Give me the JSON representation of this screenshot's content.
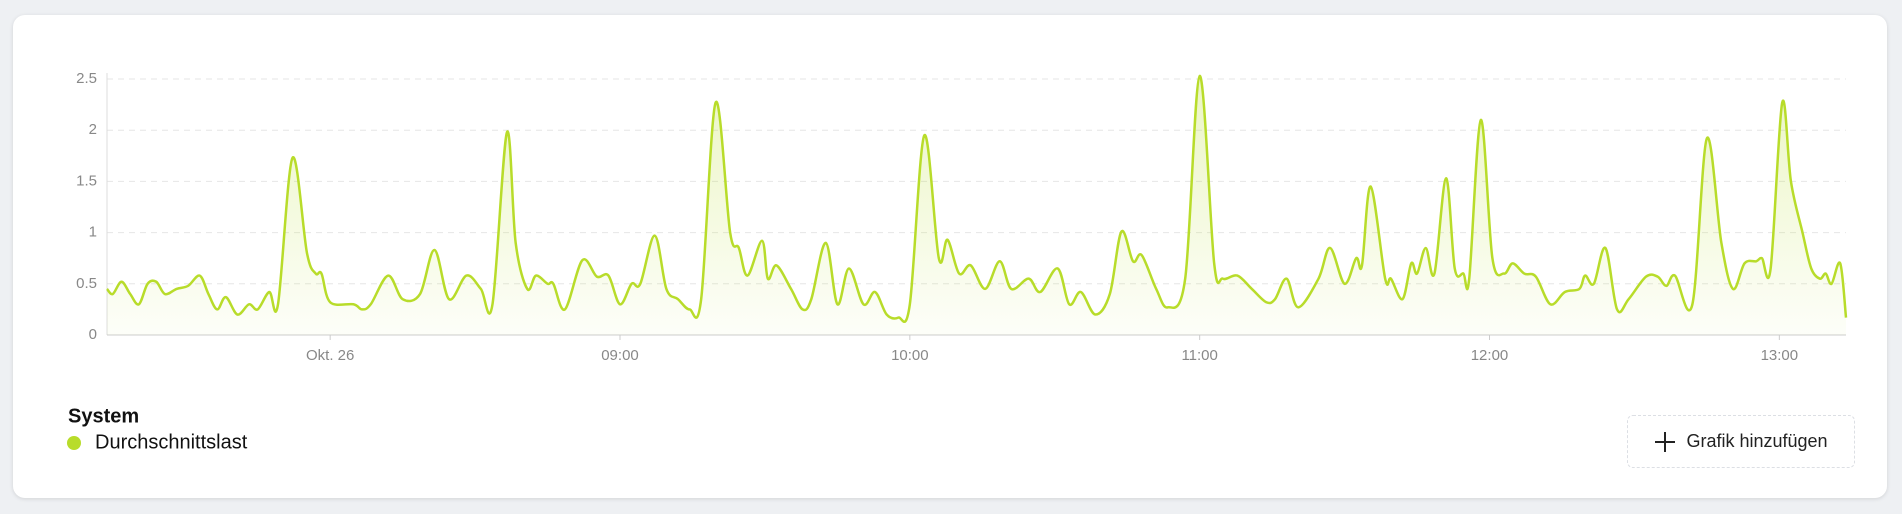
{
  "chart_data": {
    "type": "line",
    "legend_title": "System",
    "series": [
      {
        "name": "Durchschnittslast",
        "color": "#b8dc2a",
        "x": [
          7.23,
          7.25,
          7.28,
          7.31,
          7.34,
          7.37,
          7.4,
          7.43,
          7.47,
          7.51,
          7.55,
          7.58,
          7.61,
          7.64,
          7.68,
          7.72,
          7.75,
          7.79,
          7.82,
          7.87,
          7.92,
          7.95,
          7.97,
          8.0,
          8.08,
          8.11,
          8.14,
          8.2,
          8.25,
          8.31,
          8.36,
          8.41,
          8.47,
          8.52,
          8.56,
          8.61,
          8.64,
          8.68,
          8.71,
          8.75,
          8.77,
          8.81,
          8.87,
          8.92,
          8.96,
          9.0,
          9.04,
          9.07,
          9.12,
          9.16,
          9.2,
          9.24,
          9.28,
          9.33,
          9.38,
          9.41,
          9.44,
          9.49,
          9.51,
          9.54,
          9.59,
          9.63,
          9.66,
          9.71,
          9.75,
          9.79,
          9.84,
          9.88,
          9.92,
          9.96,
          10.0,
          10.05,
          10.1,
          10.13,
          10.17,
          10.21,
          10.26,
          10.31,
          10.35,
          10.41,
          10.45,
          10.51,
          10.55,
          10.59,
          10.64,
          10.69,
          10.73,
          10.77,
          10.8,
          10.85,
          10.89,
          10.95,
          11.0,
          11.05,
          11.08,
          11.13,
          11.18,
          11.23,
          11.26,
          11.3,
          11.34,
          11.41,
          11.45,
          11.5,
          11.54,
          11.56,
          11.59,
          11.64,
          11.66,
          11.7,
          11.73,
          11.75,
          11.78,
          11.81,
          11.85,
          11.88,
          11.91,
          11.93,
          11.97,
          12.01,
          12.05,
          12.08,
          12.12,
          12.16,
          12.21,
          12.26,
          12.31,
          12.33,
          12.36,
          12.4,
          12.44,
          12.48,
          12.54,
          12.58,
          12.61,
          12.64,
          12.7,
          12.75,
          12.8,
          12.84,
          12.88,
          12.92,
          12.94,
          12.97,
          13.01,
          13.04,
          13.08,
          13.11,
          13.14,
          13.16,
          13.18,
          13.21,
          13.23
        ],
        "values": [
          0.45,
          0.4,
          0.52,
          0.4,
          0.3,
          0.5,
          0.52,
          0.4,
          0.45,
          0.48,
          0.58,
          0.4,
          0.25,
          0.37,
          0.2,
          0.3,
          0.25,
          0.42,
          0.3,
          1.73,
          0.8,
          0.6,
          0.6,
          0.32,
          0.3,
          0.25,
          0.3,
          0.58,
          0.35,
          0.4,
          0.83,
          0.35,
          0.58,
          0.45,
          0.3,
          1.98,
          0.9,
          0.45,
          0.58,
          0.5,
          0.5,
          0.25,
          0.73,
          0.57,
          0.58,
          0.3,
          0.5,
          0.5,
          0.97,
          0.45,
          0.35,
          0.25,
          0.35,
          2.27,
          1.0,
          0.85,
          0.58,
          0.92,
          0.55,
          0.68,
          0.45,
          0.25,
          0.35,
          0.9,
          0.3,
          0.65,
          0.3,
          0.42,
          0.2,
          0.17,
          0.3,
          1.95,
          0.75,
          0.93,
          0.6,
          0.68,
          0.45,
          0.72,
          0.45,
          0.55,
          0.42,
          0.65,
          0.3,
          0.42,
          0.2,
          0.4,
          1.01,
          0.72,
          0.78,
          0.45,
          0.27,
          0.55,
          2.53,
          0.7,
          0.55,
          0.58,
          0.45,
          0.32,
          0.35,
          0.55,
          0.27,
          0.55,
          0.85,
          0.5,
          0.75,
          0.68,
          1.45,
          0.55,
          0.55,
          0.35,
          0.7,
          0.6,
          0.85,
          0.6,
          1.53,
          0.65,
          0.6,
          0.55,
          2.1,
          0.75,
          0.6,
          0.7,
          0.6,
          0.57,
          0.3,
          0.42,
          0.45,
          0.58,
          0.5,
          0.85,
          0.25,
          0.35,
          0.57,
          0.57,
          0.48,
          0.58,
          0.3,
          1.92,
          0.9,
          0.45,
          0.7,
          0.72,
          0.75,
          0.65,
          2.27,
          1.5,
          1.0,
          0.65,
          0.55,
          0.6,
          0.5,
          0.7,
          0.17
        ]
      }
    ],
    "xlim": [
      7.23,
      13.23
    ],
    "xticks": [
      {
        "value": 8,
        "label": "Okt. 26"
      },
      {
        "value": 9,
        "label": "09:00"
      },
      {
        "value": 10,
        "label": "10:00"
      },
      {
        "value": 11,
        "label": "11:00"
      },
      {
        "value": 12,
        "label": "12:00"
      },
      {
        "value": 13,
        "label": "13:00"
      }
    ],
    "ylim": [
      0,
      2.5
    ],
    "yticks": [
      0,
      0.5,
      1,
      1.5,
      2,
      2.5
    ],
    "grid": true
  },
  "button": "Grafik hinzufügen"
}
